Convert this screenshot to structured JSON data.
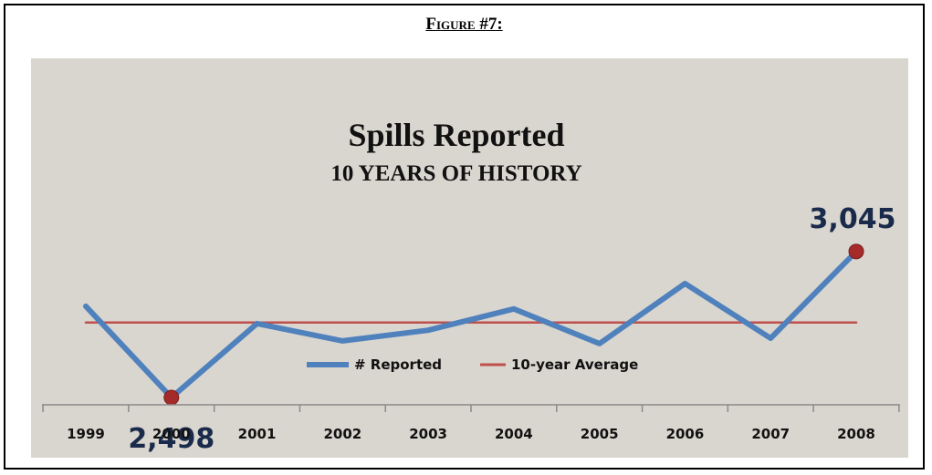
{
  "figure_label": "Figure #7:",
  "chart_data": {
    "type": "line",
    "title": "Spills Reported",
    "subtitle": "10 YEARS OF HISTORY",
    "categories": [
      "1999",
      "2000",
      "2001",
      "2002",
      "2003",
      "2004",
      "2005",
      "2006",
      "2007",
      "2008"
    ],
    "series": [
      {
        "name": "# Reported",
        "values": [
          2840,
          2498,
          2775,
          2710,
          2750,
          2830,
          2700,
          2925,
          2720,
          3045
        ],
        "color": "#4f81bd"
      },
      {
        "name": "10-year Average",
        "values": [
          2779,
          2779,
          2779,
          2779,
          2779,
          2779,
          2779,
          2779,
          2779,
          2779
        ],
        "color": "#c0504d"
      }
    ],
    "annotations": [
      {
        "category": "2000",
        "value": 2498,
        "label": "2,498"
      },
      {
        "category": "2008",
        "value": 3045,
        "label": "3,045"
      }
    ],
    "marker_color": "#a52a2a",
    "ylim": [
      2300,
      3700
    ],
    "grid": false,
    "legend_position": "bottom-center",
    "background_color": "#d9d5cf"
  }
}
